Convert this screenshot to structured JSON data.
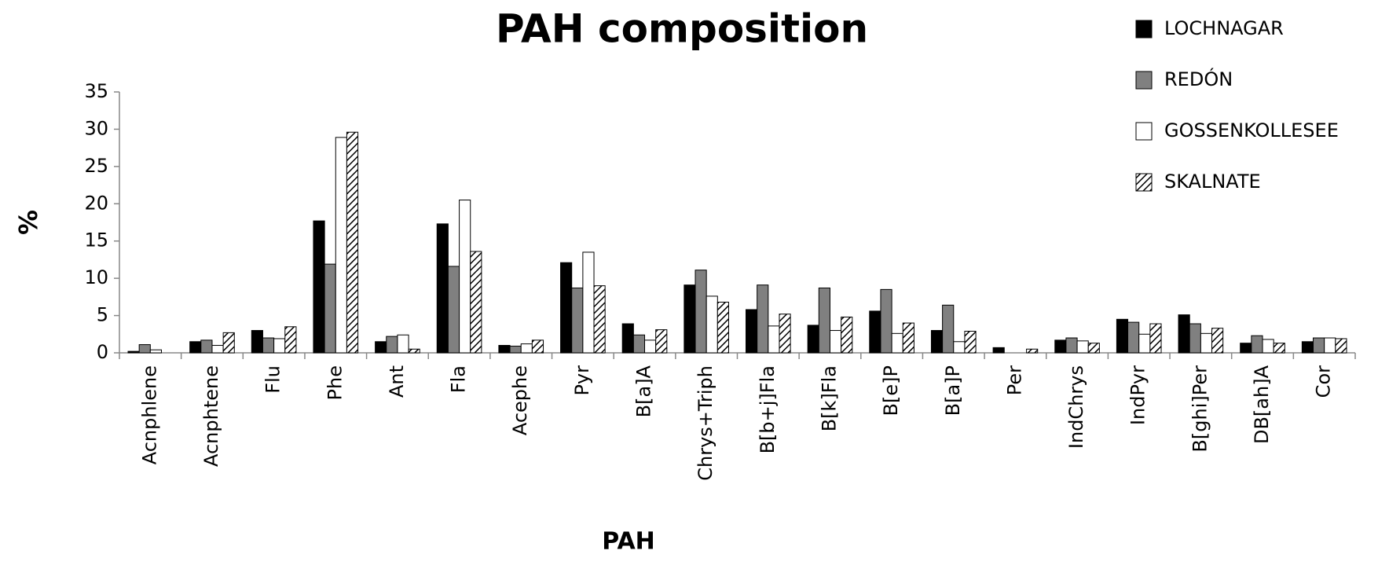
{
  "chart_data": {
    "type": "bar",
    "title": "PAH composition",
    "x_label": "PAH",
    "y_label": "%",
    "categories": [
      "Acnphlene",
      "Acnphtene",
      "Flu",
      "Phe",
      "Ant",
      "Fla",
      "Acephe",
      "Pyr",
      "B[a]A",
      "Chrys+Triph",
      "B[b+j]Fla",
      "B[k]Fla",
      "B[e]P",
      "B[a]P",
      "Per",
      "IndChrys",
      "IndPyr",
      "B[ghi]Per",
      "DB[ah]A",
      "Cor"
    ],
    "series": [
      {
        "name": "LOCHNAGAR",
        "color": "#000000",
        "values": [
          0.2,
          1.5,
          3.0,
          17.7,
          1.5,
          17.3,
          1.0,
          12.1,
          3.9,
          9.1,
          5.8,
          3.7,
          5.6,
          3.0,
          0.7,
          1.7,
          4.5,
          5.1,
          1.3,
          1.5
        ]
      },
      {
        "name": "REDÓN",
        "color": "#808080",
        "values": [
          1.1,
          1.7,
          2.0,
          11.9,
          2.2,
          11.6,
          0.9,
          8.7,
          2.4,
          11.1,
          9.1,
          8.7,
          8.5,
          6.4,
          0,
          2.0,
          4.1,
          3.9,
          2.3,
          2.0
        ]
      },
      {
        "name": "GOSSENKOLLESEE",
        "color": "#ffffff",
        "values": [
          0.4,
          1.0,
          1.9,
          28.9,
          2.4,
          20.5,
          1.2,
          13.5,
          1.7,
          7.6,
          3.6,
          3.0,
          2.6,
          1.5,
          0,
          1.6,
          2.5,
          2.6,
          1.8,
          2.0
        ]
      },
      {
        "name": "SKALNATE",
        "color": "#ffffff",
        "pattern": "hatch",
        "values": [
          0,
          2.7,
          3.5,
          29.6,
          0.5,
          13.6,
          1.7,
          9.0,
          3.1,
          6.8,
          5.2,
          4.8,
          4.0,
          2.9,
          0.5,
          1.3,
          3.9,
          3.3,
          1.3,
          1.9
        ]
      }
    ],
    "ylim": [
      0,
      35
    ],
    "yticks": [
      0,
      5,
      10,
      15,
      20,
      25,
      30,
      35
    ],
    "grid": false,
    "legend": "top-right"
  }
}
